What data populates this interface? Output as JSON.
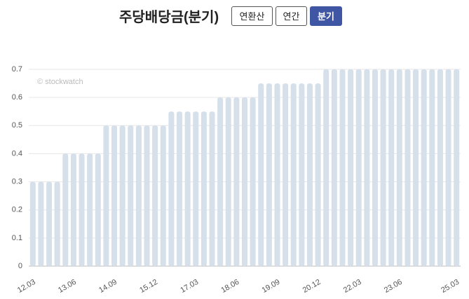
{
  "tabs": [
    "연환산",
    "연간",
    "분기"
  ],
  "chart_data": {
    "type": "bar",
    "title": "주당배당금(분기)",
    "watermark": "© stockwatch",
    "categories": [
      "12.03",
      null,
      null,
      null,
      null,
      "13.06",
      null,
      null,
      null,
      null,
      "14.09",
      null,
      null,
      null,
      null,
      "15.12",
      null,
      null,
      null,
      null,
      "17.03",
      null,
      null,
      null,
      null,
      "18.06",
      null,
      null,
      null,
      null,
      "19.09",
      null,
      null,
      null,
      null,
      "20.12",
      null,
      null,
      null,
      null,
      "22.03",
      null,
      null,
      null,
      null,
      "23.06",
      null,
      null,
      null,
      null,
      null,
      null,
      "25.03"
    ],
    "values": [
      0.3,
      0.3,
      0.3,
      0.3,
      0.4,
      0.4,
      0.4,
      0.4,
      0.4,
      0.5,
      0.5,
      0.5,
      0.5,
      0.5,
      0.5,
      0.5,
      0.5,
      0.55,
      0.55,
      0.55,
      0.55,
      0.55,
      0.55,
      0.6,
      0.6,
      0.6,
      0.6,
      0.6,
      0.65,
      0.65,
      0.65,
      0.65,
      0.65,
      0.65,
      0.65,
      0.65,
      0.7,
      0.7,
      0.7,
      0.7,
      0.7,
      0.7,
      0.7,
      0.7,
      0.7,
      0.7,
      0.7,
      0.7,
      0.7,
      0.7,
      0.7,
      0.7,
      0.7
    ],
    "color": "#d5e0eb",
    "ylim": [
      0,
      0.7
    ],
    "yticks": [
      0,
      0.1,
      0.2,
      0.3,
      0.4,
      0.5,
      0.6,
      0.7
    ],
    "grid": true
  }
}
